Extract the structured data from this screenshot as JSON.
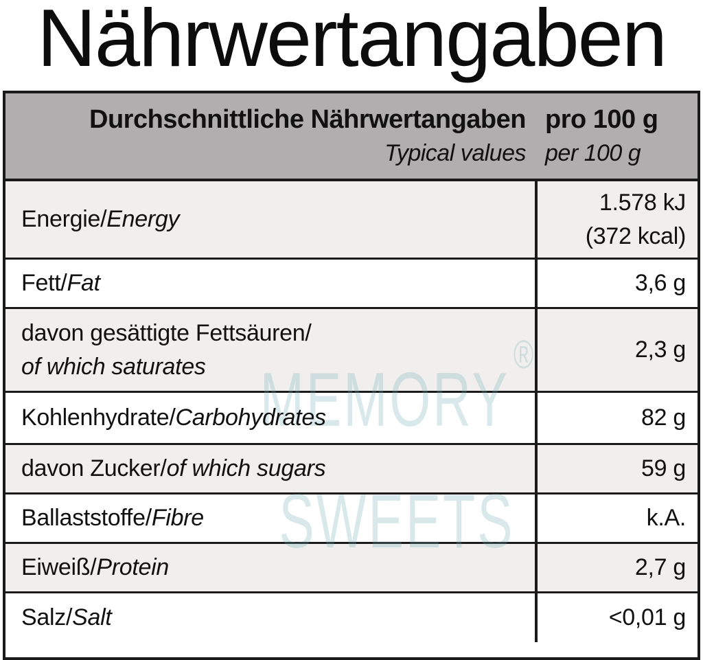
{
  "page_title": "Nährwertangaben",
  "table": {
    "separator": "/",
    "header": {
      "col1_line1": "Durchschnittliche Nährwertangaben",
      "col1_line2": "Typical values",
      "col2_line1": "pro 100 g",
      "col2_line2": "per 100 g"
    },
    "rows": [
      {
        "label_de": "Energie",
        "label_en": "Energy",
        "value_lines": [
          "1.578 kJ",
          "(372 kcal)"
        ]
      },
      {
        "label_de": "Fett",
        "label_en": "Fat",
        "value": "3,6 g"
      },
      {
        "label_de": "davon gesättigte Fettsäuren",
        "label_en": "of which saturates",
        "two_line": true,
        "value": "2,3 g"
      },
      {
        "label_de": "Kohlenhydrate",
        "label_en": "Carbohydrates",
        "value": "82 g"
      },
      {
        "label_de": "davon Zucker",
        "label_en": "of which sugars",
        "value": "59 g"
      },
      {
        "label_de": "Ballaststoffe",
        "label_en": "Fibre",
        "value": "k.A."
      },
      {
        "label_de": "Eiweiß",
        "label_en": "Protein",
        "value": "2,7 g"
      },
      {
        "label_de": "Salz",
        "label_en": "Salt",
        "value": "<0,01 g"
      }
    ]
  },
  "watermark": {
    "line1": "MEMORY",
    "reg": "®",
    "line2": "SWEETS"
  },
  "colors": {
    "line": "#1a1a1a",
    "header-bg": "#b0aeae",
    "shade": "#f0efed",
    "watermark": "rgba(110,170,178,0.26)",
    "text": "#111111"
  }
}
